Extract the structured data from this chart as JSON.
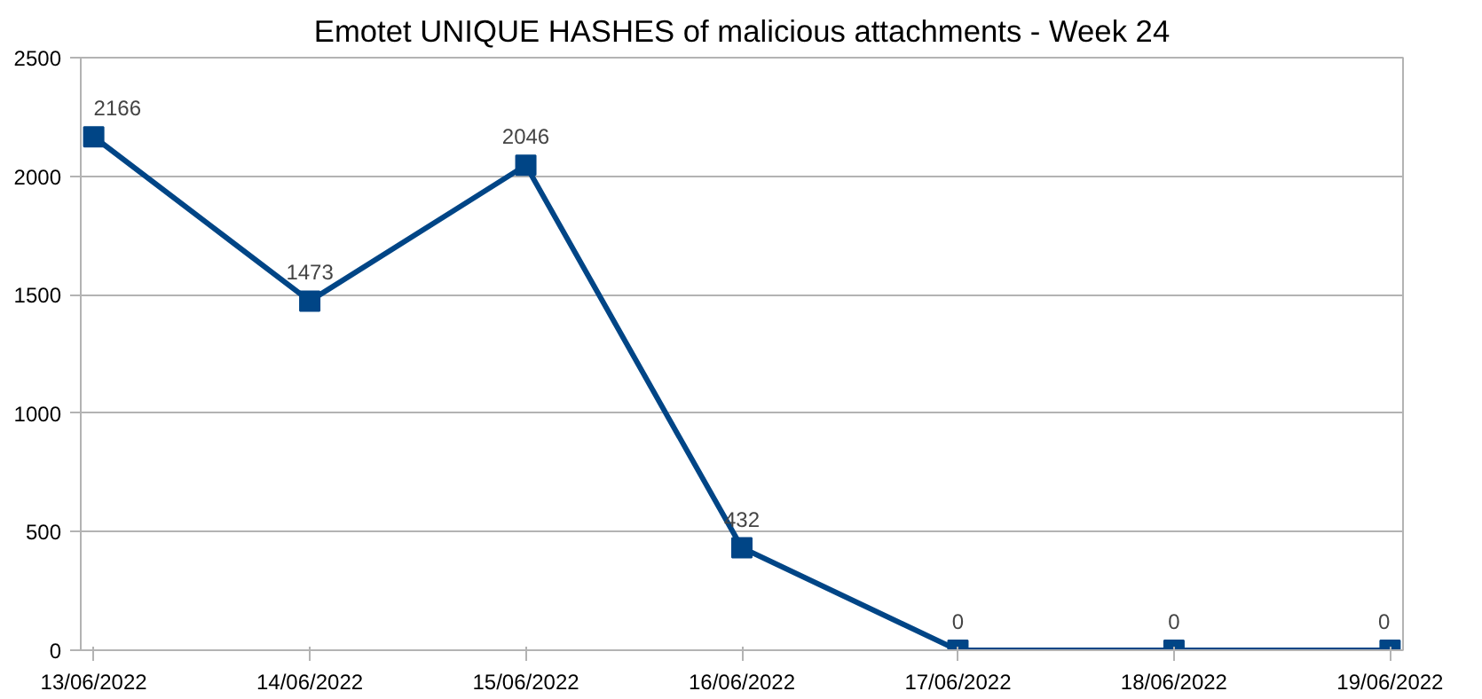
{
  "chart_data": {
    "type": "line",
    "title": "Emotet UNIQUE HASHES of malicious attachments - Week 24",
    "categories": [
      "13/06/2022",
      "14/06/2022",
      "15/06/2022",
      "16/06/2022",
      "17/06/2022",
      "18/06/2022",
      "19/06/2022"
    ],
    "series": [
      {
        "color": "#004586",
        "values": [
          2166,
          1473,
          2046,
          432,
          0,
          0,
          0
        ]
      }
    ],
    "ylim": [
      0,
      2500
    ],
    "yticks": [
      0,
      500,
      1000,
      1500,
      2000,
      2500
    ],
    "grid": "y",
    "marker": "square",
    "line_style": "solid",
    "data_labels": true
  }
}
